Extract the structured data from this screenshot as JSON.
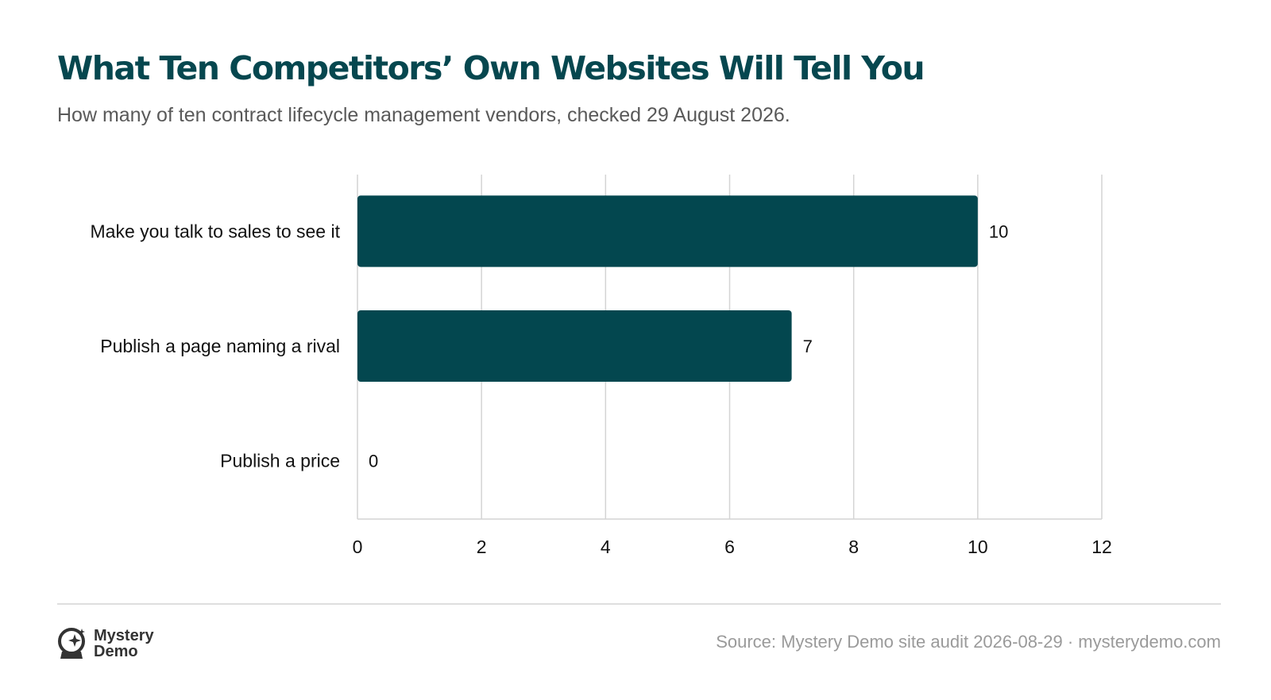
{
  "header": {
    "title": "What Ten Competitors’ Own Websites Will Tell You",
    "subtitle": "How many of ten contract lifecycle management vendors, checked 29 August 2026."
  },
  "chart_data": {
    "type": "bar",
    "orientation": "horizontal",
    "categories": [
      "Make you talk to sales to see it",
      "Publish a page naming a rival",
      "Publish a price"
    ],
    "values": [
      10,
      7,
      0
    ],
    "xlim": [
      0,
      12
    ],
    "xticks": [
      0,
      2,
      4,
      6,
      8,
      10,
      12
    ],
    "grid": true,
    "bar_color": "#03474f",
    "grid_color": "#d4d4d4"
  },
  "footer": {
    "brand_line1": "Mystery",
    "brand_line2": "Demo",
    "source": "Source: Mystery Demo site audit 2026-08-29 · mysterydemo.com"
  },
  "icons": {
    "brand": "crystal-ball-sparkle-icon"
  }
}
